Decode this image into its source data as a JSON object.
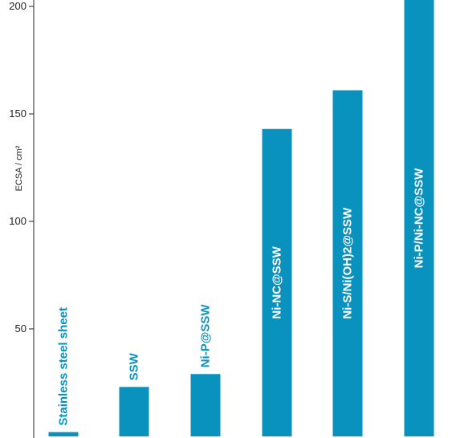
{
  "chart_data": {
    "type": "bar",
    "categories": [
      "Stainless steel sheet",
      "SSW",
      "Ni-P@SSW",
      "Ni-NC@SSW",
      "Ni-S/Ni(OH)2@SSW",
      "Ni-P/Ni-NC@SSW"
    ],
    "values": [
      2,
      23,
      29,
      143,
      161,
      209
    ],
    "ylabel": "ECSA / cm²",
    "ylim": [
      0,
      203
    ],
    "yticks": [
      50,
      100,
      150,
      200
    ],
    "grid": false,
    "bar_color": "#0892bd",
    "label_color_outside": "#0892bd",
    "label_color_inside": "#ffffff"
  }
}
